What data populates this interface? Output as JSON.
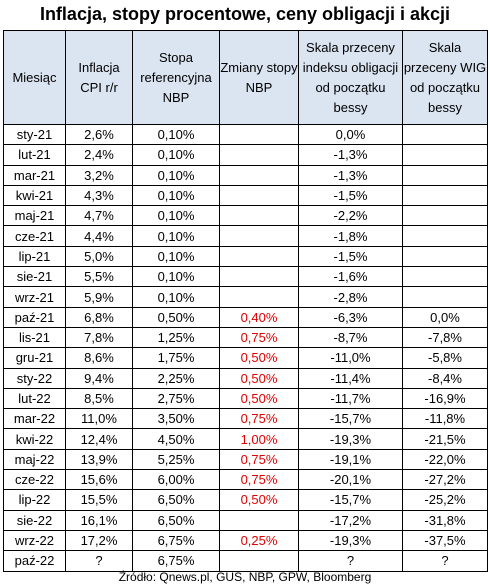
{
  "title": "Inflacja, stopy procentowe, ceny obligacji i akcji",
  "source": "Źródło: Qnews.pl, GUS, NBP, GPW, Bloomberg",
  "colors": {
    "header_bg": "#dbe5f1",
    "change_text": "#e00000"
  },
  "columns": [
    "Miesiąc",
    "Inflacja CPI r/r",
    "Stopa referencyjna NBP",
    "Zmiany stopy NBP",
    "Skala przeceny indeksu obligacji od początku bessy",
    "Skala przeceny WIG od początku bessy"
  ],
  "rows": [
    [
      "sty-21",
      "2,6%",
      "0,10%",
      "",
      "0,0%",
      ""
    ],
    [
      "lut-21",
      "2,4%",
      "0,10%",
      "",
      "-1,3%",
      ""
    ],
    [
      "mar-21",
      "3,2%",
      "0,10%",
      "",
      "-1,3%",
      ""
    ],
    [
      "kwi-21",
      "4,3%",
      "0,10%",
      "",
      "-1,5%",
      ""
    ],
    [
      "maj-21",
      "4,7%",
      "0,10%",
      "",
      "-2,2%",
      ""
    ],
    [
      "cze-21",
      "4,4%",
      "0,10%",
      "",
      "-1,8%",
      ""
    ],
    [
      "lip-21",
      "5,0%",
      "0,10%",
      "",
      "-1,5%",
      ""
    ],
    [
      "sie-21",
      "5,5%",
      "0,10%",
      "",
      "-1,6%",
      ""
    ],
    [
      "wrz-21",
      "5,9%",
      "0,10%",
      "",
      "-2,8%",
      ""
    ],
    [
      "paź-21",
      "6,8%",
      "0,50%",
      "0,40%",
      "-6,3%",
      "0,0%"
    ],
    [
      "lis-21",
      "7,8%",
      "1,25%",
      "0,75%",
      "-8,7%",
      "-7,8%"
    ],
    [
      "gru-21",
      "8,6%",
      "1,75%",
      "0,50%",
      "-11,0%",
      "-5,8%"
    ],
    [
      "sty-22",
      "9,4%",
      "2,25%",
      "0,50%",
      "-11,4%",
      "-8,4%"
    ],
    [
      "lut-22",
      "8,5%",
      "2,75%",
      "0,50%",
      "-11,7%",
      "-16,9%"
    ],
    [
      "mar-22",
      "11,0%",
      "3,50%",
      "0,75%",
      "-15,7%",
      "-11,8%"
    ],
    [
      "kwi-22",
      "12,4%",
      "4,50%",
      "1,00%",
      "-19,3%",
      "-21,5%"
    ],
    [
      "maj-22",
      "13,9%",
      "5,25%",
      "0,75%",
      "-19,1%",
      "-22,0%"
    ],
    [
      "cze-22",
      "15,6%",
      "6,00%",
      "0,75%",
      "-20,1%",
      "-27,2%"
    ],
    [
      "lip-22",
      "15,5%",
      "6,50%",
      "0,50%",
      "-15,7%",
      "-25,2%"
    ],
    [
      "sie-22",
      "16,1%",
      "6,50%",
      "",
      "-17,2%",
      "-31,8%"
    ],
    [
      "wrz-22",
      "17,2%",
      "6,75%",
      "0,25%",
      "-19,3%",
      "-37,5%"
    ],
    [
      "paź-22",
      "?",
      "6,75%",
      "",
      "?",
      "?"
    ]
  ]
}
